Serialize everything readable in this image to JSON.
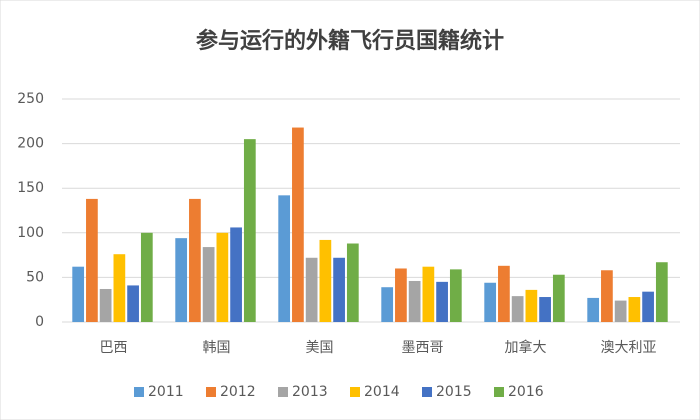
{
  "chart_data": {
    "type": "bar",
    "title": "参与运行的外籍飞行员国籍统计",
    "categories": [
      "巴西",
      "韩国",
      "美国",
      "墨西哥",
      "加拿大",
      "澳大利亚"
    ],
    "series": [
      {
        "name": "2011",
        "color": "#5b9bd5",
        "values": [
          62,
          94,
          142,
          39,
          44,
          27
        ]
      },
      {
        "name": "2012",
        "color": "#ed7d31",
        "values": [
          138,
          138,
          218,
          60,
          63,
          58
        ]
      },
      {
        "name": "2013",
        "color": "#a5a5a5",
        "values": [
          37,
          84,
          72,
          46,
          29,
          24
        ]
      },
      {
        "name": "2014",
        "color": "#ffc000",
        "values": [
          76,
          100,
          92,
          62,
          36,
          28
        ]
      },
      {
        "name": "2015",
        "color": "#4472c4",
        "values": [
          41,
          106,
          72,
          45,
          28,
          34
        ]
      },
      {
        "name": "2016",
        "color": "#70ad47",
        "values": [
          100,
          205,
          88,
          59,
          53,
          67
        ]
      }
    ],
    "ylim": [
      0,
      250
    ],
    "yticks": [
      0,
      50,
      100,
      150,
      200,
      250
    ],
    "grid": true,
    "legend": "bottom"
  }
}
